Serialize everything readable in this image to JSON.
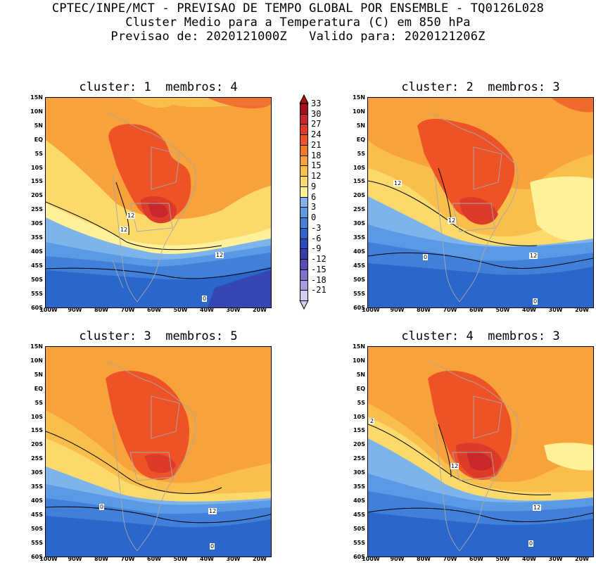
{
  "header": {
    "line1": "CPTEC/INPE/MCT - PREVISAO DE TEMPO GLOBAL POR ENSEMBLE - TQ0126L028",
    "line2": "Cluster Medio para a Temperatura (C) em 850 hPa",
    "line3": "Previsao de: 2020121000Z   Valido para: 2020121206Z"
  },
  "panels": [
    {
      "title": "cluster: 1  membros: 4"
    },
    {
      "title": "cluster: 2  membros: 3"
    },
    {
      "title": "cluster: 3  membros: 5"
    },
    {
      "title": "cluster: 4  membros: 3"
    }
  ],
  "axes": {
    "lat_labels": [
      "15N",
      "10N",
      "5N",
      "EQ",
      "5S",
      "10S",
      "15S",
      "20S",
      "25S",
      "30S",
      "35S",
      "40S",
      "45S",
      "50S",
      "55S",
      "60S"
    ],
    "lon_labels": [
      "100W",
      "90W",
      "80W",
      "70W",
      "60W",
      "50W",
      "40W",
      "30W",
      "20W"
    ]
  },
  "colorbar": {
    "labels": [
      "33",
      "30",
      "27",
      "24",
      "21",
      "18",
      "15",
      "12",
      "9",
      "6",
      "3",
      "0",
      "-3",
      "-6",
      "-9",
      "-12",
      "-15",
      "-18",
      "-21"
    ],
    "colors": [
      "#a50f15",
      "#c8282b",
      "#de3a2a",
      "#ee5328",
      "#f47a2a",
      "#f7a23a",
      "#f9be4c",
      "#fbd96b",
      "#fff09a",
      "#7db4ec",
      "#5a99e4",
      "#4080d9",
      "#2b66cb",
      "#2d4bb8",
      "#3a3aaa",
      "#5a4bc0",
      "#8070d0",
      "#a89ae0",
      "#d4cbf0"
    ]
  },
  "contour_labels": {
    "p1": [
      "12",
      "12",
      "12",
      "0"
    ],
    "p2": [
      "12",
      "12",
      "12",
      "0",
      "0"
    ],
    "p3": [
      "12",
      "0",
      "0"
    ],
    "p4": [
      "2",
      "12",
      "12",
      "0"
    ]
  }
}
